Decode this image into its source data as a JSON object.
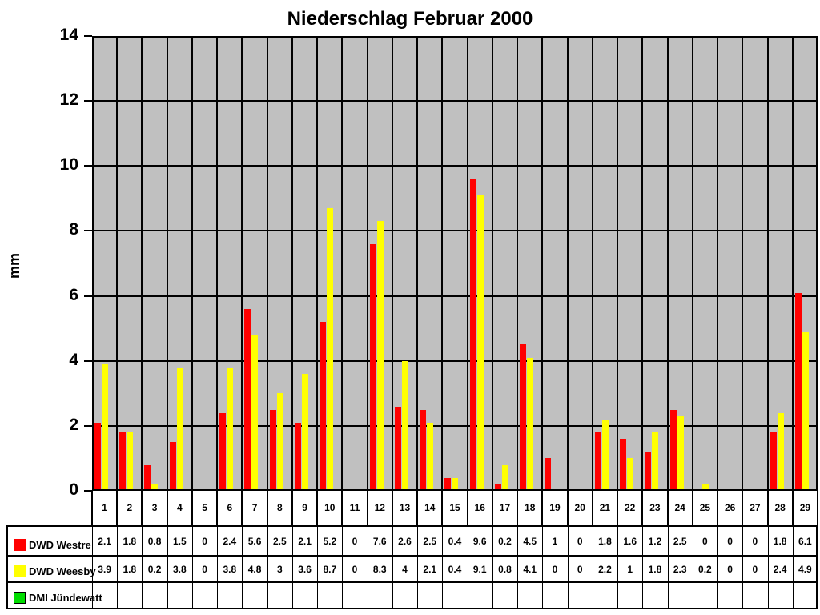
{
  "title": "Niederschlag Februar 2000",
  "y_axis": {
    "label": "mm",
    "tick_labels": [
      14,
      12,
      10,
      8,
      6,
      4,
      2,
      0
    ]
  },
  "x_axis": {
    "day_labels": [
      1,
      2,
      3,
      4,
      5,
      6,
      7,
      8,
      9,
      10,
      11,
      12,
      13,
      14,
      15,
      16,
      17,
      18,
      19,
      20,
      21,
      22,
      23,
      24,
      25,
      26,
      27,
      28,
      29
    ]
  },
  "colors": {
    "plot_background": "#C0C0C0",
    "gridline": "#000000",
    "westre": "#FF0000",
    "weesby": "#FFFF00",
    "jundewatt": "#00DD00"
  },
  "chart_data": {
    "type": "bar",
    "title": "Niederschlag Februar 2000",
    "xlabel": "",
    "ylabel": "mm",
    "ylim": [
      0,
      14
    ],
    "y_major_step": 2,
    "grid": {
      "horizontal": true,
      "vertical_per_category": true
    },
    "legend_position": "table-bottom",
    "categories": [
      1,
      2,
      3,
      4,
      5,
      6,
      7,
      8,
      9,
      10,
      11,
      12,
      13,
      14,
      15,
      16,
      17,
      18,
      19,
      20,
      21,
      22,
      23,
      24,
      25,
      26,
      27,
      28,
      29
    ],
    "series": [
      {
        "name": "DWD Westre",
        "color": "#FF0000",
        "swatch_border": false,
        "values": [
          2.1,
          1.8,
          0.8,
          1.5,
          0,
          2.4,
          5.6,
          2.5,
          2.1,
          5.2,
          0,
          7.6,
          2.6,
          2.5,
          0.4,
          9.6,
          0.2,
          4.5,
          1,
          0,
          1.8,
          1.6,
          1.2,
          2.5,
          0,
          0,
          0,
          1.8,
          6.1
        ]
      },
      {
        "name": "DWD Weesby",
        "color": "#FFFF00",
        "swatch_border": false,
        "values": [
          3.9,
          1.8,
          0.2,
          3.8,
          0,
          3.8,
          4.8,
          3,
          3.6,
          8.7,
          0,
          8.3,
          4,
          2.1,
          0.4,
          9.1,
          0.8,
          4.1,
          0,
          0,
          2.2,
          1,
          1.8,
          2.3,
          0.2,
          0,
          0,
          2.4,
          4.9
        ]
      },
      {
        "name": "DMI Jündewatt",
        "color": "#00DD00",
        "swatch_border": true,
        "values": []
      }
    ]
  }
}
